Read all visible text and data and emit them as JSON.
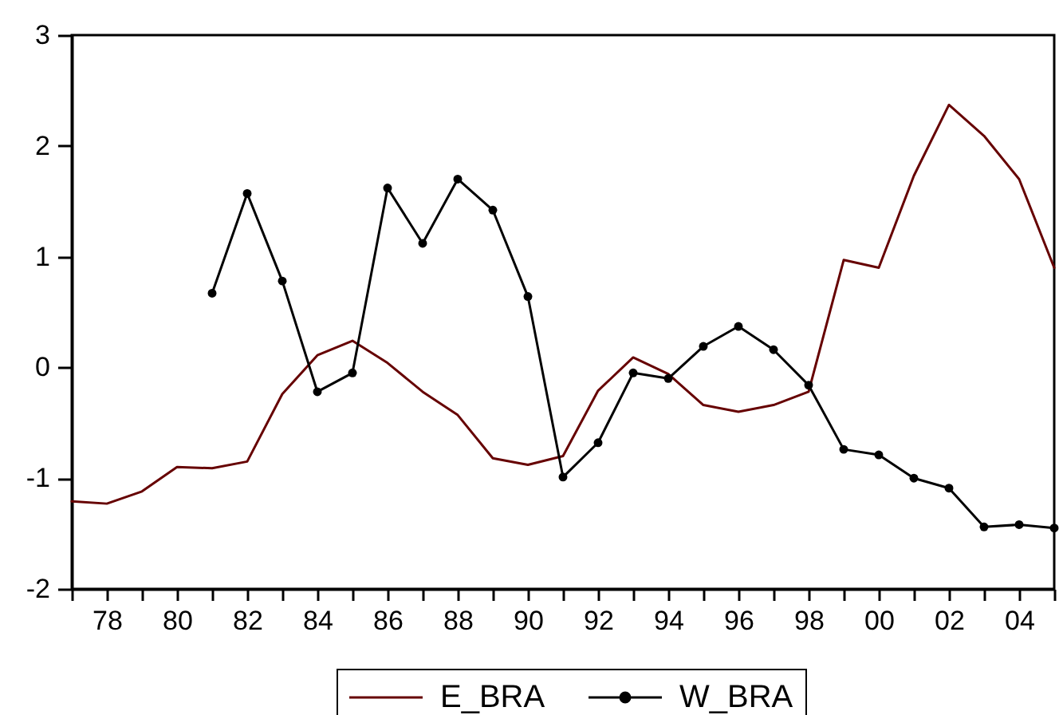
{
  "chart_data": {
    "type": "line",
    "x": [
      1977,
      1978,
      1979,
      1980,
      1981,
      1982,
      1983,
      1984,
      1985,
      1986,
      1987,
      1988,
      1989,
      1990,
      1991,
      1992,
      1993,
      1994,
      1995,
      1996,
      1997,
      1998,
      1999,
      2000,
      2001,
      2002,
      2003,
      2004,
      2005
    ],
    "series": [
      {
        "name": "E_BRA",
        "color": "#660000",
        "marker": "none",
        "values": [
          -1.21,
          -1.23,
          -1.12,
          -0.9,
          -0.91,
          -0.85,
          -0.24,
          0.11,
          0.24,
          0.04,
          -0.22,
          -0.43,
          -0.82,
          -0.88,
          -0.8,
          -0.21,
          0.09,
          -0.06,
          -0.34,
          -0.4,
          -0.34,
          -0.22,
          0.97,
          0.9,
          1.73,
          2.37,
          2.09,
          1.7,
          0.9
        ]
      },
      {
        "name": "W_BRA",
        "color": "#000000",
        "marker": "circle",
        "values": [
          null,
          null,
          null,
          null,
          0.67,
          1.57,
          0.78,
          -0.22,
          -0.05,
          1.62,
          1.12,
          1.7,
          1.42,
          0.64,
          -0.99,
          -0.68,
          -0.05,
          -0.1,
          0.19,
          0.37,
          0.16,
          -0.16,
          -0.74,
          -0.79,
          -1.0,
          -1.09,
          -1.44,
          -1.42,
          -1.45
        ]
      }
    ],
    "xlim": [
      1977,
      2005
    ],
    "xticks": [
      {
        "value": 1977,
        "label": null
      },
      {
        "value": 1978,
        "label": "78"
      },
      {
        "value": 1979,
        "label": null
      },
      {
        "value": 1980,
        "label": "80"
      },
      {
        "value": 1981,
        "label": null
      },
      {
        "value": 1982,
        "label": "82"
      },
      {
        "value": 1983,
        "label": null
      },
      {
        "value": 1984,
        "label": "84"
      },
      {
        "value": 1985,
        "label": null
      },
      {
        "value": 1986,
        "label": "86"
      },
      {
        "value": 1987,
        "label": null
      },
      {
        "value": 1988,
        "label": "88"
      },
      {
        "value": 1989,
        "label": null
      },
      {
        "value": 1990,
        "label": "90"
      },
      {
        "value": 1991,
        "label": null
      },
      {
        "value": 1992,
        "label": "92"
      },
      {
        "value": 1993,
        "label": null
      },
      {
        "value": 1994,
        "label": "94"
      },
      {
        "value": 1995,
        "label": null
      },
      {
        "value": 1996,
        "label": "96"
      },
      {
        "value": 1997,
        "label": null
      },
      {
        "value": 1998,
        "label": "98"
      },
      {
        "value": 1999,
        "label": null
      },
      {
        "value": 2000,
        "label": "00"
      },
      {
        "value": 2001,
        "label": null
      },
      {
        "value": 2002,
        "label": "02"
      },
      {
        "value": 2003,
        "label": null
      },
      {
        "value": 2004,
        "label": "04"
      },
      {
        "value": 2005,
        "label": null
      }
    ],
    "ylim": [
      -2,
      3
    ],
    "yticks": [
      -2,
      -1,
      0,
      1,
      2,
      3
    ],
    "grid": false,
    "legend": "bottom"
  }
}
